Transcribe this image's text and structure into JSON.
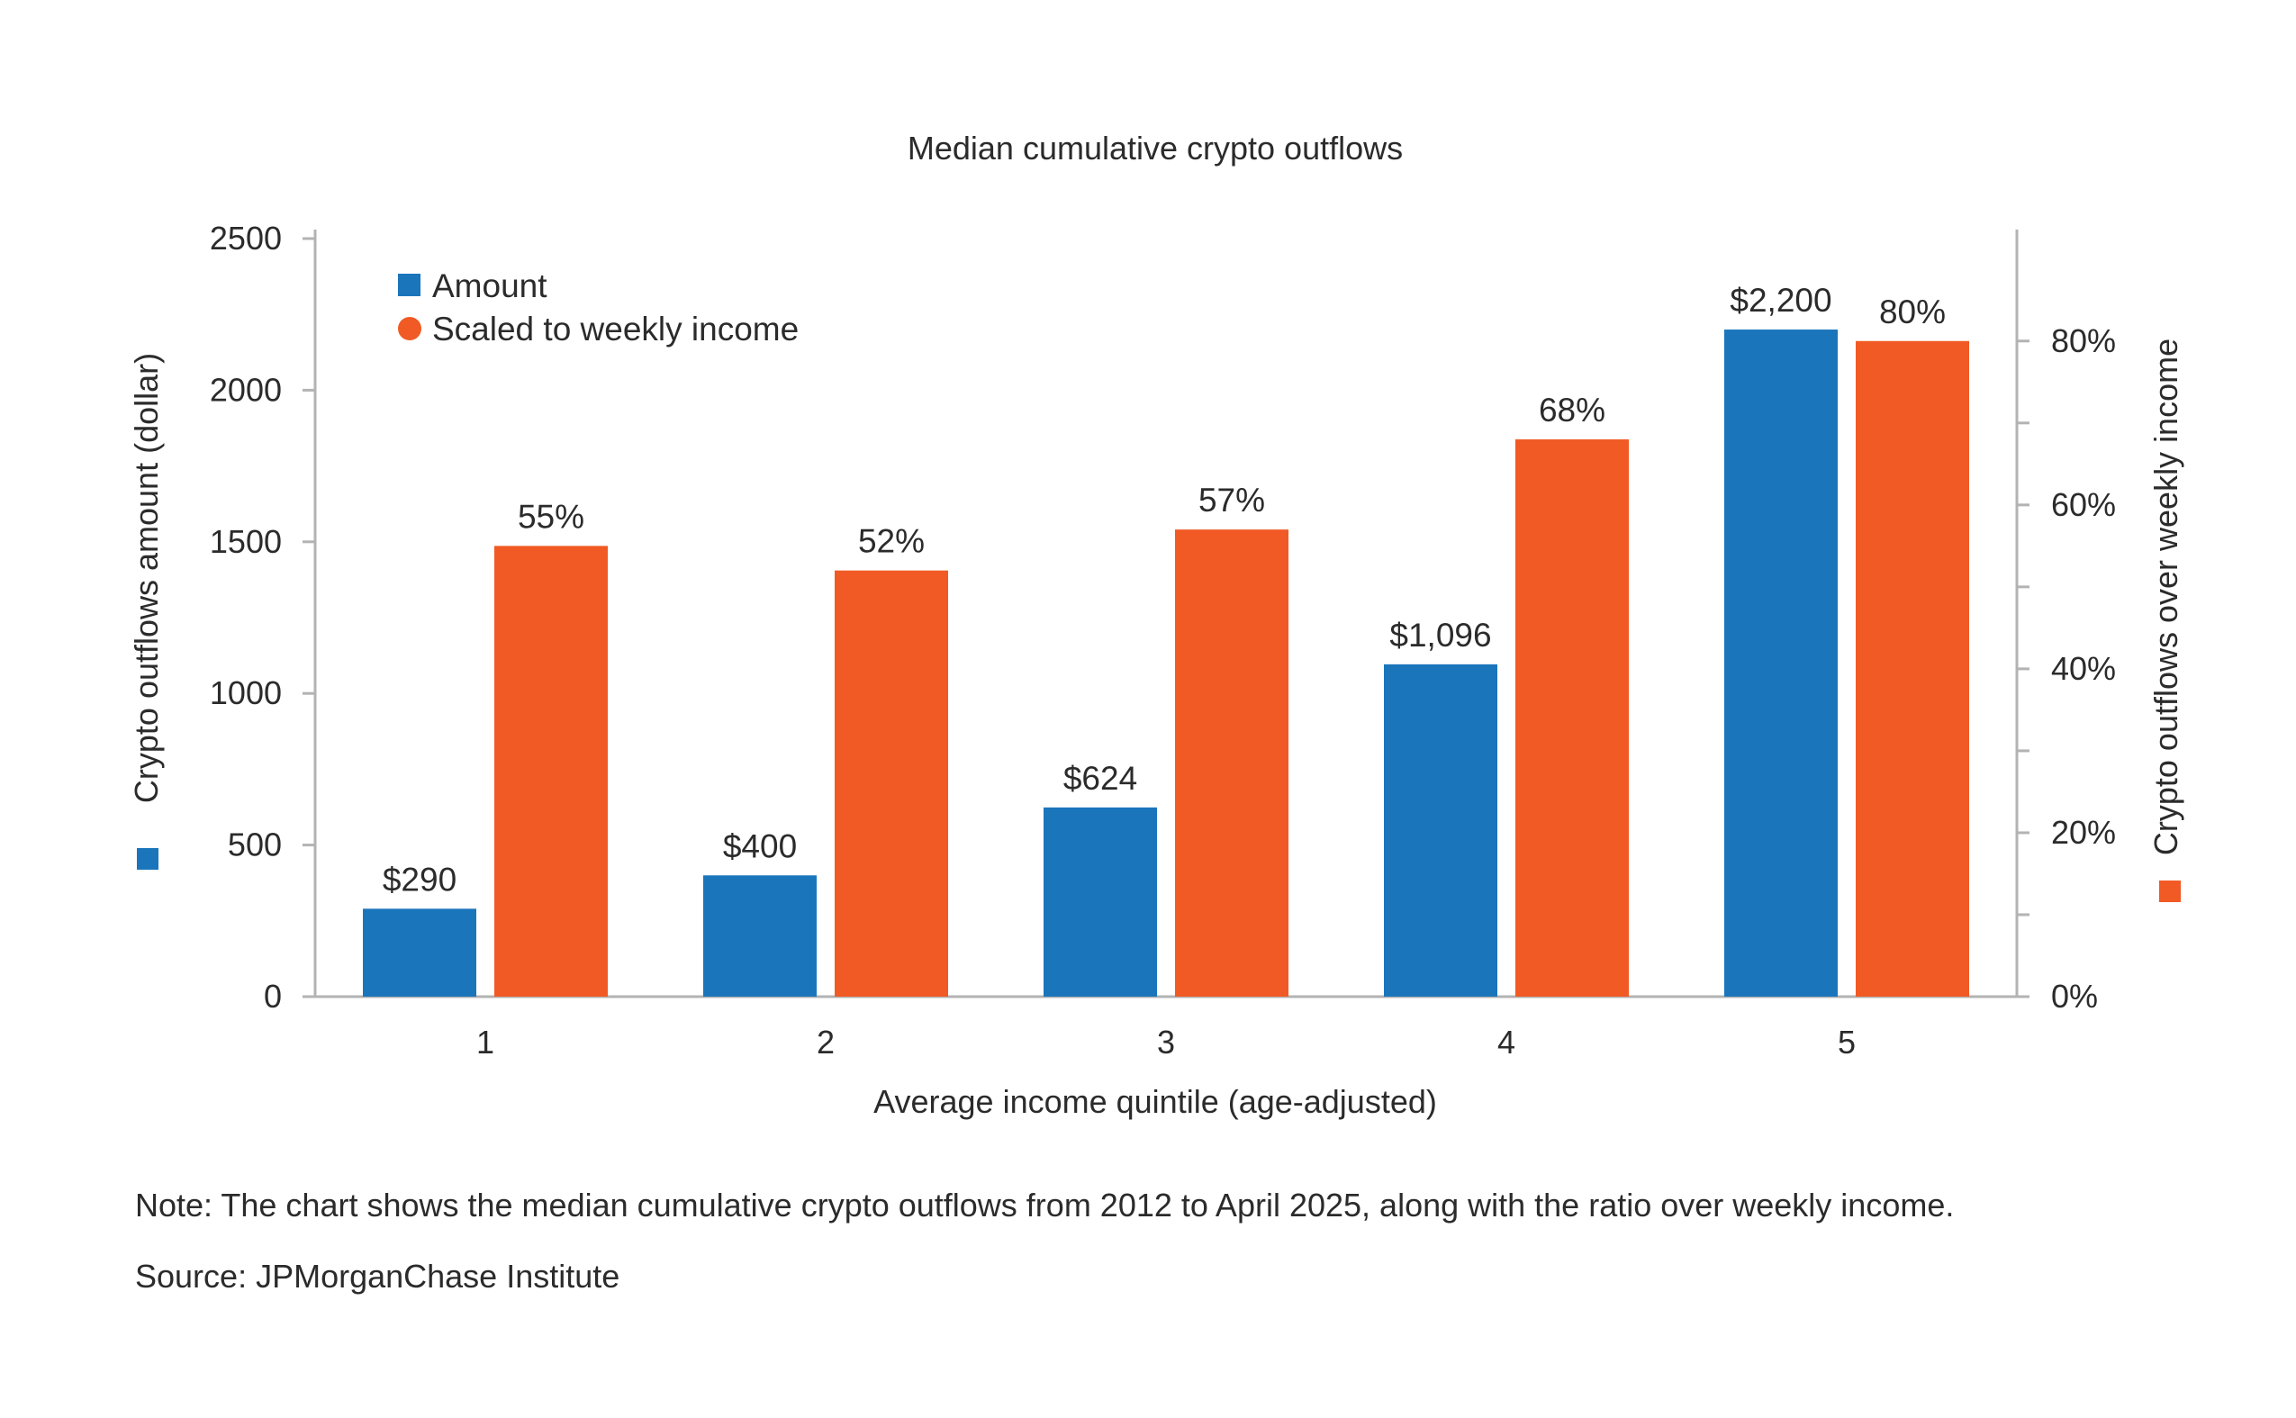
{
  "chart_data": {
    "type": "bar",
    "title": "Median cumulative crypto outflows",
    "xlabel": "Average income quintile (age-adjusted)",
    "ylabel_left": "Crypto outflows amount (dollar)",
    "ylabel_right": "Crypto outflows over weekly income",
    "categories": [
      "1",
      "2",
      "3",
      "4",
      "5"
    ],
    "y_left": {
      "lim": [
        0,
        2500
      ],
      "ticks": [
        0,
        500,
        1000,
        1500,
        2000,
        2500
      ],
      "tick_labels": [
        "0",
        "500",
        "1000",
        "1500",
        "2000",
        "2500"
      ]
    },
    "y_right": {
      "lim": [
        0,
        0.925
      ],
      "ticks": [
        0,
        0.2,
        0.4,
        0.6,
        0.8
      ],
      "tick_labels": [
        "0%",
        "20%",
        "40%",
        "60%",
        "80%"
      ],
      "minor_ticks": [
        0.1,
        0.3,
        0.5,
        0.7
      ]
    },
    "series": [
      {
        "name": "Amount",
        "axis": "left",
        "color": "#1b75bb",
        "values": [
          290,
          400,
          624,
          1096,
          2200
        ],
        "labels": [
          "$290",
          "$400",
          "$624",
          "$1,096",
          "$2,200"
        ]
      },
      {
        "name": "Scaled to weekly income",
        "axis": "right",
        "color": "#f15a24",
        "values": [
          0.55,
          0.52,
          0.57,
          0.68,
          0.8
        ],
        "labels": [
          "55%",
          "52%",
          "57%",
          "68%",
          "80%"
        ]
      }
    ],
    "legend_position": "top-left",
    "grid": false
  },
  "note": "Note: The chart shows the median cumulative crypto outflows from 2012 to April 2025, along with the ratio over weekly income.",
  "source": "Source: JPMorganChase Institute",
  "colors": {
    "amount": "#1b75bb",
    "scaled": "#f15a24",
    "axis": "#b3b3b3",
    "text": "#2b2b2b"
  }
}
